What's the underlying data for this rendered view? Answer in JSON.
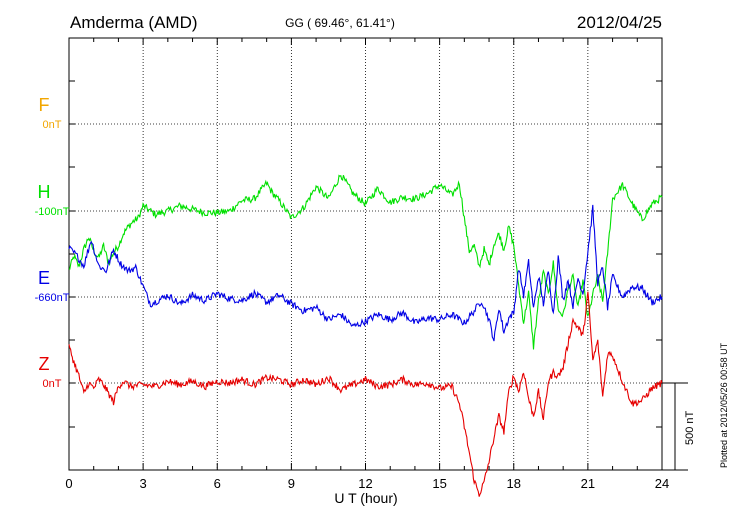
{
  "header": {
    "station": "Amderma (AMD)",
    "coords": "GG ( 69.46°,  61.41°)",
    "date": "2012/04/25"
  },
  "footer": {
    "plotted": "Plotted at 2012/05/26 00:58 UT"
  },
  "scale_bar": {
    "label": "500 nT",
    "value_nT": 500
  },
  "chart_data": {
    "type": "line",
    "xlabel": "U T (hour)",
    "xlim": [
      0,
      24
    ],
    "xticks": [
      0,
      3,
      6,
      9,
      12,
      15,
      18,
      21,
      24
    ],
    "grid": true,
    "series": [
      {
        "name": "F",
        "baseline_label": "0nT",
        "color": "#f2a600",
        "x": [],
        "y": []
      },
      {
        "name": "H",
        "baseline_label": "-100nT",
        "color": "#00e000",
        "x": [
          0,
          0.2,
          0.4,
          0.6,
          0.8,
          1.0,
          1.2,
          1.4,
          1.6,
          1.8,
          2.0,
          2.2,
          2.4,
          2.6,
          2.8,
          3.0,
          3.2,
          3.5,
          4.0,
          4.5,
          5.0,
          5.5,
          6.0,
          6.5,
          7.0,
          7.5,
          8.0,
          8.2,
          8.5,
          9.0,
          9.5,
          10.0,
          10.5,
          11.0,
          11.5,
          12.0,
          12.5,
          13.0,
          13.5,
          14.0,
          14.5,
          15.0,
          15.5,
          15.8,
          16.0,
          16.2,
          16.4,
          16.6,
          16.8,
          17.0,
          17.2,
          17.4,
          17.6,
          17.8,
          18.0,
          18.2,
          18.4,
          18.6,
          18.8,
          19.0,
          19.2,
          19.4,
          19.6,
          19.8,
          20.0,
          20.2,
          20.4,
          20.6,
          20.8,
          21.0,
          21.2,
          21.4,
          21.6,
          21.8,
          22.0,
          22.4,
          22.8,
          23.2,
          23.6,
          24.0
        ],
        "y": [
          -340,
          -260,
          -320,
          -220,
          -150,
          -230,
          -270,
          -200,
          -300,
          -240,
          -200,
          -130,
          -90,
          -60,
          -40,
          30,
          10,
          -20,
          0,
          30,
          10,
          -10,
          -10,
          0,
          60,
          70,
          160,
          110,
          60,
          -40,
          20,
          140,
          70,
          210,
          100,
          40,
          130,
          50,
          80,
          70,
          100,
          150,
          90,
          160,
          -40,
          -230,
          -200,
          -320,
          -220,
          -310,
          -190,
          -130,
          -220,
          -90,
          -200,
          -430,
          -640,
          -470,
          -780,
          -520,
          -350,
          -480,
          -300,
          -570,
          -600,
          -450,
          -380,
          -560,
          -400,
          -620,
          -480,
          -380,
          -520,
          -240,
          70,
          150,
          40,
          -50,
          40,
          80
        ]
      },
      {
        "name": "E",
        "baseline_label": "-660nT",
        "color": "#0000e6",
        "x": [
          0,
          0.3,
          0.6,
          0.9,
          1.2,
          1.5,
          1.8,
          2.1,
          2.4,
          2.7,
          3.0,
          3.3,
          3.6,
          4.0,
          4.5,
          5.0,
          5.5,
          6.0,
          6.5,
          7.0,
          7.5,
          8.0,
          8.5,
          9.0,
          9.5,
          10.0,
          10.5,
          11.0,
          11.5,
          12.0,
          12.5,
          13.0,
          13.5,
          14.0,
          14.5,
          15.0,
          15.5,
          16.0,
          16.4,
          16.7,
          17.0,
          17.2,
          17.4,
          17.6,
          17.8,
          18.0,
          18.2,
          18.4,
          18.6,
          18.8,
          19.0,
          19.2,
          19.4,
          19.6,
          19.8,
          20.0,
          20.2,
          20.4,
          20.6,
          20.8,
          21.0,
          21.2,
          21.4,
          21.6,
          21.8,
          22.0,
          22.4,
          22.8,
          23.2,
          23.6,
          24.0
        ],
        "y": [
          280,
          240,
          180,
          330,
          180,
          150,
          270,
          190,
          150,
          170,
          60,
          -40,
          -20,
          10,
          -40,
          10,
          -20,
          20,
          -10,
          -20,
          20,
          -30,
          10,
          -40,
          -80,
          -60,
          -130,
          -100,
          -170,
          -140,
          -100,
          -130,
          -90,
          -150,
          -120,
          -130,
          -100,
          -150,
          -80,
          -20,
          -130,
          -250,
          -60,
          -200,
          -120,
          -90,
          170,
          10,
          200,
          -70,
          120,
          -40,
          150,
          -100,
          230,
          -20,
          100,
          -50,
          110,
          20,
          260,
          510,
          80,
          170,
          -60,
          120,
          0,
          60,
          50,
          -30,
          0
        ]
      },
      {
        "name": "Z",
        "baseline_label": "0nT",
        "color": "#e60000",
        "x": [
          0,
          0.2,
          0.4,
          0.6,
          0.8,
          1.0,
          1.2,
          1.4,
          1.6,
          1.8,
          2.0,
          2.2,
          2.5,
          3.0,
          3.5,
          4.0,
          4.5,
          5.0,
          5.5,
          6.0,
          6.5,
          7.0,
          7.5,
          8.0,
          8.5,
          9.0,
          9.5,
          10.0,
          10.5,
          11.0,
          11.5,
          12.0,
          12.5,
          13.0,
          13.5,
          14.0,
          14.5,
          15.0,
          15.5,
          15.8,
          16.0,
          16.2,
          16.4,
          16.6,
          16.8,
          17.0,
          17.2,
          17.4,
          17.6,
          17.8,
          18.0,
          18.2,
          18.4,
          18.6,
          18.8,
          19.0,
          19.2,
          19.4,
          19.6,
          19.8,
          20.0,
          20.2,
          20.4,
          20.6,
          20.8,
          21.0,
          21.2,
          21.4,
          21.6,
          21.8,
          22.0,
          22.4,
          22.8,
          23.2,
          23.6,
          24.0
        ],
        "y": [
          210,
          120,
          40,
          -60,
          0,
          -30,
          20,
          -10,
          -60,
          -110,
          -20,
          10,
          -20,
          -10,
          -20,
          10,
          -10,
          10,
          -20,
          10,
          0,
          20,
          -10,
          30,
          20,
          -10,
          20,
          -10,
          30,
          -40,
          -10,
          20,
          -20,
          -10,
          20,
          -10,
          0,
          -30,
          -20,
          -120,
          -250,
          -400,
          -560,
          -640,
          -570,
          -450,
          -310,
          -190,
          -280,
          -50,
          40,
          -50,
          70,
          -90,
          -190,
          -50,
          -210,
          10,
          60,
          40,
          90,
          230,
          360,
          320,
          270,
          520,
          130,
          240,
          -80,
          170,
          160,
          10,
          -120,
          -100,
          -30,
          0
        ]
      }
    ]
  }
}
